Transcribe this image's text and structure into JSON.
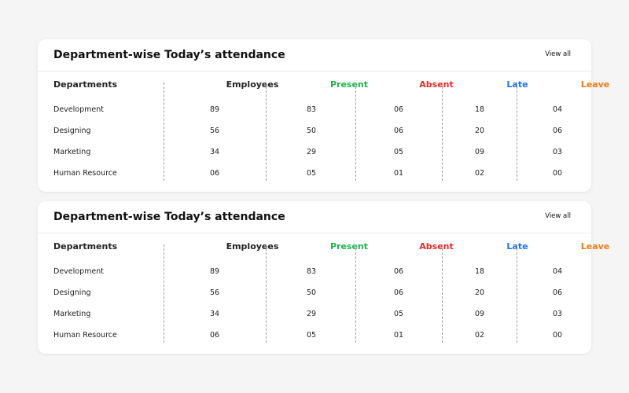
{
  "cards": [
    {
      "title": "Department-wise Today’s attendance",
      "view_all": "View all",
      "columns": [
        "Departments",
        "Employees",
        "Present",
        "Absent",
        "Late",
        "Leave"
      ],
      "rows": [
        [
          "Development",
          "89",
          "83",
          "06",
          "18",
          "04"
        ],
        [
          "Designing",
          "56",
          "50",
          "06",
          "20",
          "06"
        ],
        [
          "Marketing",
          "34",
          "29",
          "05",
          "09",
          "03"
        ],
        [
          "Human Resource",
          "06",
          "05",
          "01",
          "02",
          "00"
        ]
      ]
    },
    {
      "title": "Department-wise Today’s attendance",
      "view_all": "View all",
      "columns": [
        "Departments",
        "Employees",
        "Present",
        "Absent",
        "Late",
        "Leave"
      ],
      "rows": [
        [
          "Development",
          "89",
          "83",
          "06",
          "18",
          "04"
        ],
        [
          "Designing",
          "56",
          "50",
          "06",
          "20",
          "06"
        ],
        [
          "Marketing",
          "34",
          "29",
          "05",
          "09",
          "03"
        ],
        [
          "Human Resource",
          "06",
          "05",
          "01",
          "02",
          "00"
        ]
      ]
    }
  ],
  "colors": {
    "departments": "#111111",
    "employees": "#111111",
    "present": "#22b24c",
    "absent": "#e02b2b",
    "late": "#1f73e8",
    "leave": "#f07a12"
  }
}
